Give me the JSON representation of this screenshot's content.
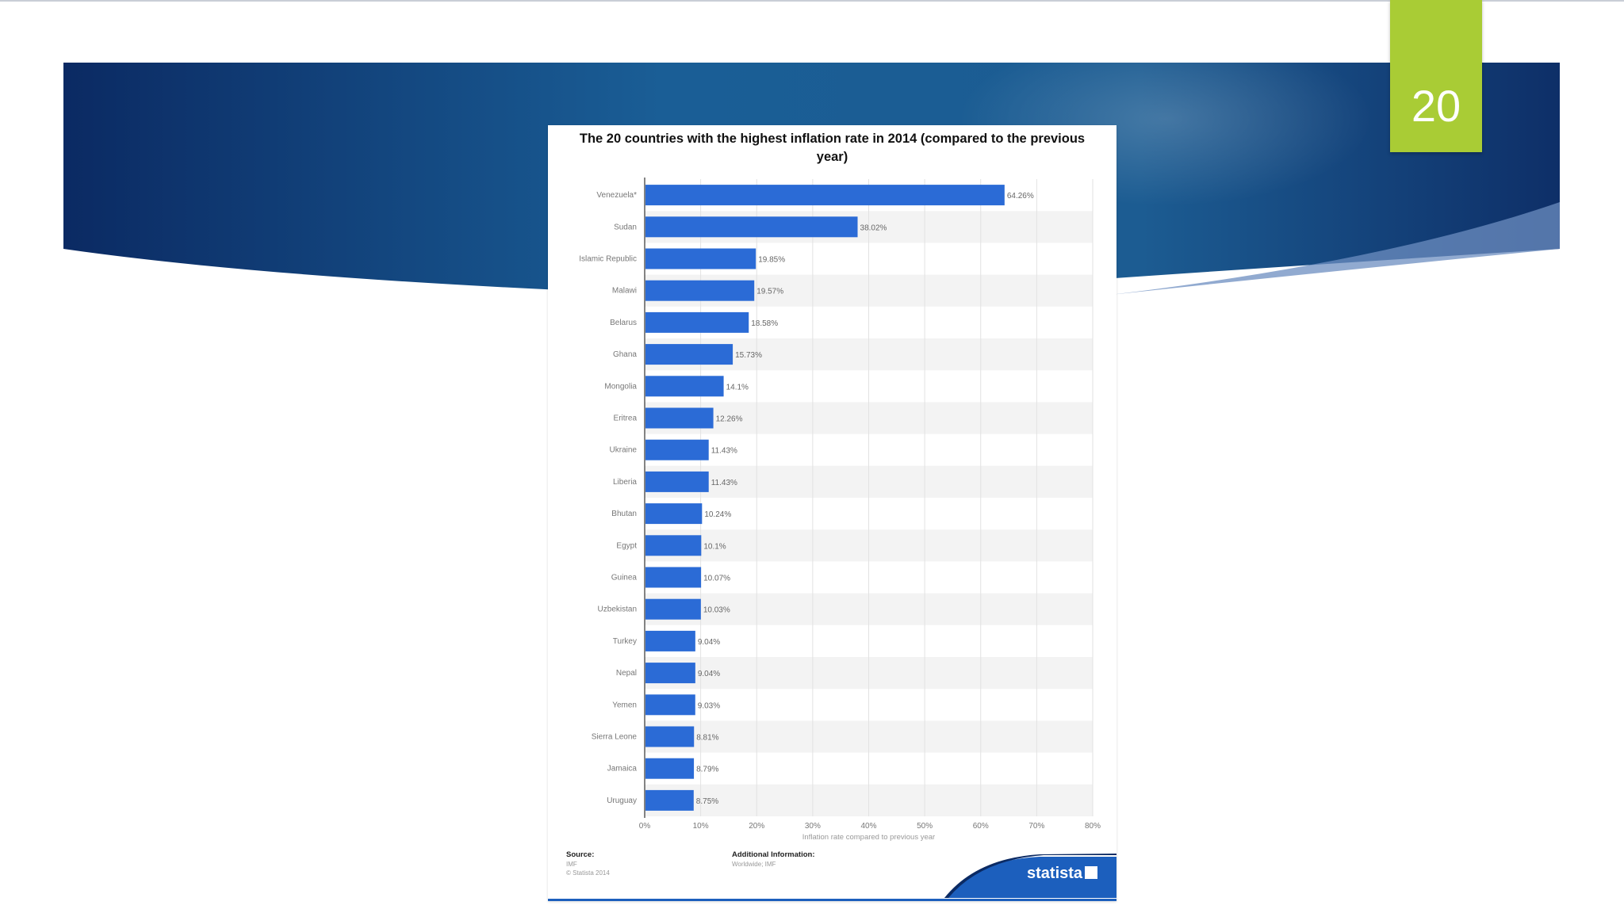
{
  "slide": {
    "page_number": "20",
    "colors": {
      "banner_dark": "#0b2a63",
      "banner_mid": "#1a5e96",
      "badge": "#a9cc35"
    }
  },
  "chart_data": {
    "type": "bar",
    "orientation": "horizontal",
    "title": "The 20 countries with the highest inflation rate in 2014 (compared to the previous year)",
    "xlabel": "Inflation rate compared to previous year",
    "ylabel": "",
    "xlim": [
      0,
      80
    ],
    "ticks": [
      "0%",
      "10%",
      "20%",
      "30%",
      "40%",
      "50%",
      "60%",
      "70%",
      "80%"
    ],
    "grid": true,
    "bar_color": "#2b6bd6",
    "categories": [
      "Venezuela*",
      "Sudan",
      "Islamic Republic",
      "Malawi",
      "Belarus",
      "Ghana",
      "Mongolia",
      "Eritrea",
      "Ukraine",
      "Liberia",
      "Bhutan",
      "Egypt",
      "Guinea",
      "Uzbekistan",
      "Turkey",
      "Nepal",
      "Yemen",
      "Sierra Leone",
      "Jamaica",
      "Uruguay"
    ],
    "values": [
      64.26,
      38.02,
      19.85,
      19.57,
      18.58,
      15.73,
      14.1,
      12.26,
      11.43,
      11.43,
      10.24,
      10.1,
      10.07,
      10.03,
      9.04,
      9.04,
      9.03,
      8.81,
      8.79,
      8.75
    ],
    "value_labels": [
      "64.26%",
      "38.02%",
      "19.85%",
      "19.57%",
      "18.58%",
      "15.73%",
      "14.1%",
      "12.26%",
      "11.43%",
      "11.43%",
      "10.24%",
      "10.1%",
      "10.07%",
      "10.03%",
      "9.04%",
      "9.04%",
      "9.03%",
      "8.81%",
      "8.79%",
      "8.75%"
    ]
  },
  "footer": {
    "source_heading": "Source:",
    "source_name": "IMF",
    "copyright": "© Statista 2014",
    "info_heading": "Additional Information:",
    "info_detail": "Worldwide; IMF",
    "brand": "statista"
  }
}
